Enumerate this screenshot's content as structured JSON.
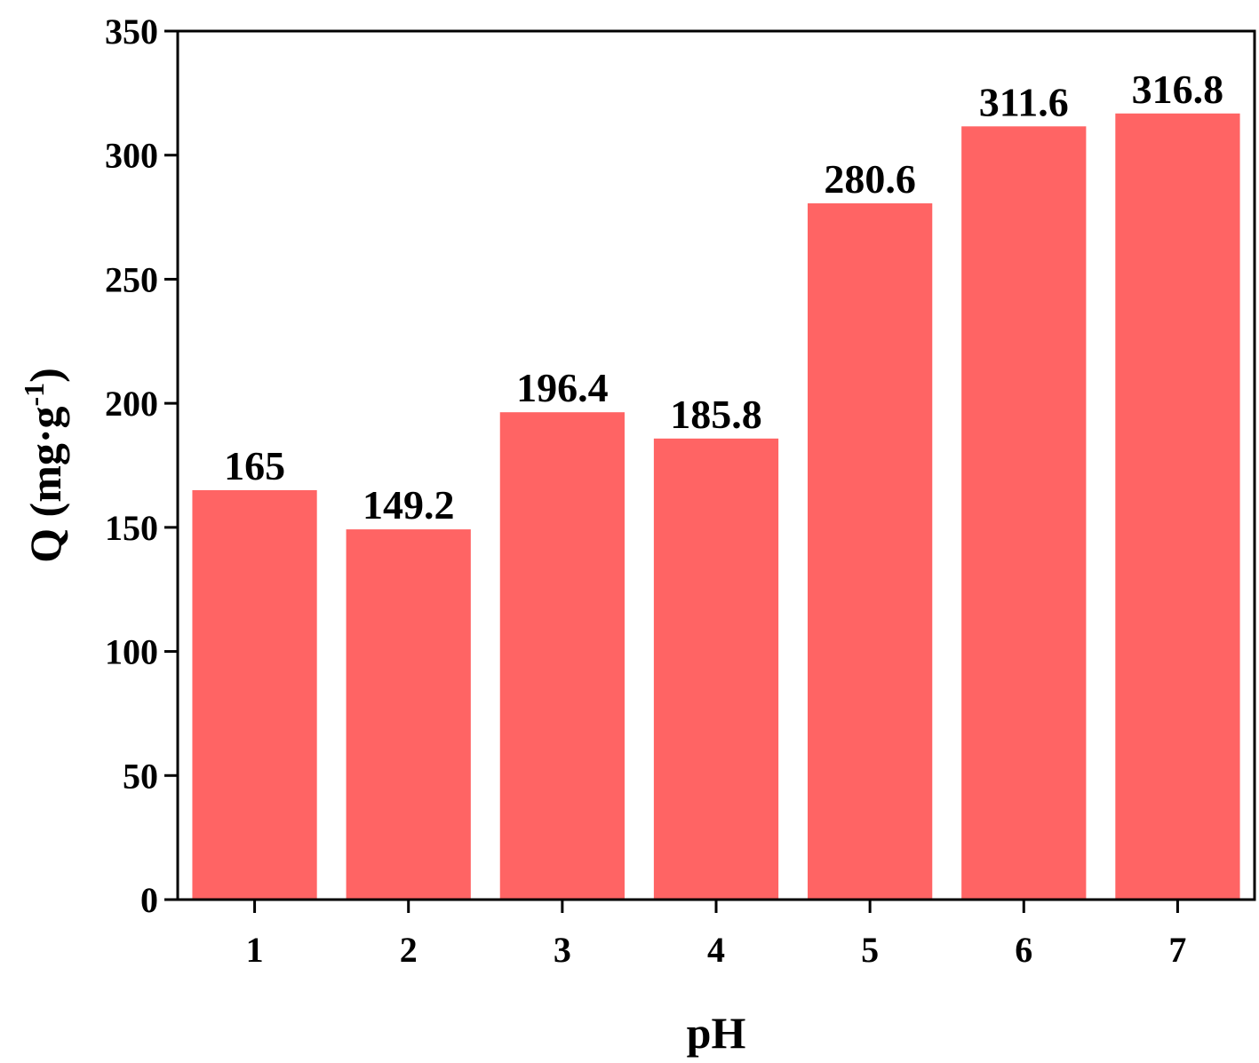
{
  "chart_data": {
    "type": "bar",
    "xlabel": "pH",
    "ylabel_parts": [
      "Q (mg·g",
      "-1",
      ")"
    ],
    "categories": [
      "1",
      "2",
      "3",
      "4",
      "5",
      "6",
      "7"
    ],
    "values": [
      165,
      149.2,
      196.4,
      185.8,
      280.6,
      311.6,
      316.8
    ],
    "color": "#ff6464",
    "ylim": [
      0,
      350
    ],
    "yticks": [
      0,
      50,
      100,
      150,
      200,
      250,
      300,
      350
    ]
  }
}
